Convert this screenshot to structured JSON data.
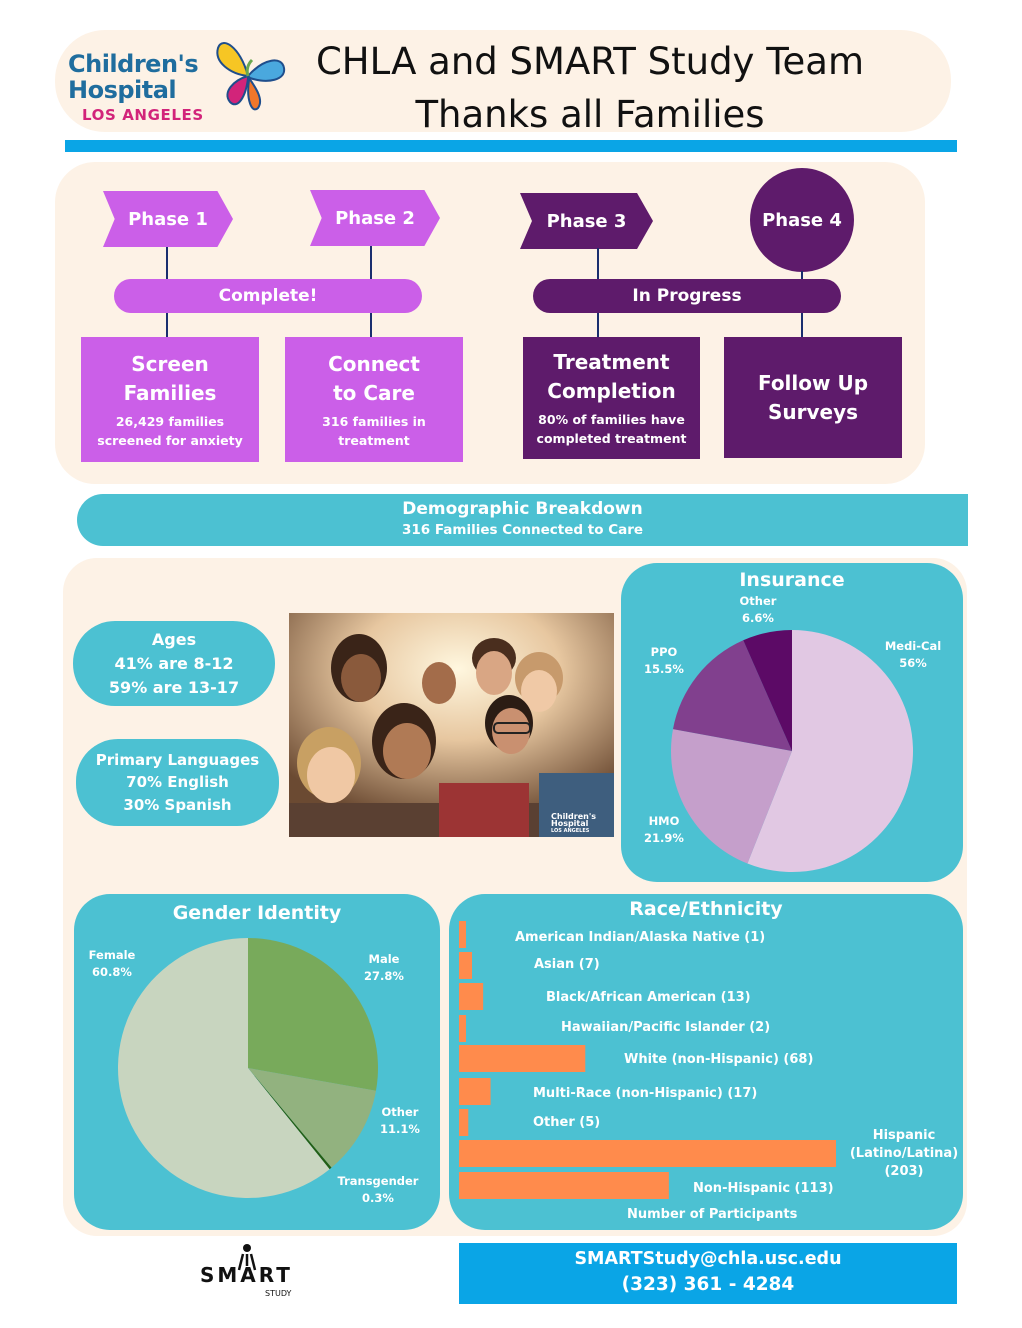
{
  "header": {
    "logo": {
      "line1": "Children's",
      "line2": "Hospital",
      "line3": "LOS ANGELES"
    },
    "title_line1": "CHLA and SMART Study Team",
    "title_line2": "Thanks all Families"
  },
  "phases": {
    "phase1": "Phase 1",
    "phase2": "Phase 2",
    "phase3": "Phase 3",
    "phase4": "Phase 4",
    "complete_label": "Complete!",
    "in_progress_label": "In Progress",
    "boxes": [
      {
        "title_l1": "Screen",
        "title_l2": "Families",
        "sub_l1": "26,429 families",
        "sub_l2": "screened for anxiety"
      },
      {
        "title_l1": "Connect",
        "title_l2": "to Care",
        "sub_l1": "316 families in",
        "sub_l2": "treatment"
      },
      {
        "title_l1": "Treatment",
        "title_l2": "Completion",
        "sub_l1": "80% of families have",
        "sub_l2": "completed treatment"
      },
      {
        "title_l1": "Follow Up",
        "title_l2": "Surveys"
      }
    ]
  },
  "demographics": {
    "title": "Demographic Breakdown",
    "subtitle": "316 Families Connected to Care",
    "ages": {
      "title": "Ages",
      "line1": "41% are 8-12",
      "line2": "59% are 13-17"
    },
    "languages": {
      "title": "Primary Languages",
      "line1": "70% English",
      "line2": "30% Spanish"
    },
    "photo_watermark": {
      "line1": "Children's",
      "line2": "Hospital",
      "line3": "LOS ANGELES"
    }
  },
  "colors": {
    "teal": "#4cc1d2",
    "cream": "#fdf2e6",
    "light_purple": "#cb5fe8",
    "dark_purple": "#5e1b6b",
    "blue": "#0aa5e6",
    "orange": "#ff8b4c"
  },
  "chart_data": [
    {
      "type": "pie",
      "title": "Insurance",
      "slices": [
        {
          "label": "Medi-Cal",
          "value": 56,
          "display": "56%",
          "color": "#e1c8e3"
        },
        {
          "label": "HMO",
          "value": 21.9,
          "display": "21.9%",
          "color": "#c59fcb"
        },
        {
          "label": "PPO",
          "value": 15.5,
          "display": "15.5%",
          "color": "#81408e"
        },
        {
          "label": "Other",
          "value": 6.6,
          "display": "6.6%",
          "color": "#5c0a66"
        }
      ]
    },
    {
      "type": "pie",
      "title": "Gender Identity",
      "slices": [
        {
          "label": "Male",
          "value": 27.8,
          "display": "27.8%",
          "color": "#78aa5b"
        },
        {
          "label": "Other",
          "value": 11.1,
          "display": "11.1%",
          "color": "#92b27f"
        },
        {
          "label": "Transgender",
          "value": 0.3,
          "display": "0.3%",
          "color": "#245e14"
        },
        {
          "label": "Female",
          "value": 60.8,
          "display": "60.8%",
          "color": "#c8d5bf"
        }
      ]
    },
    {
      "type": "bar",
      "title": "Race/Ethnicity",
      "xlabel": "Number of Participants",
      "categories": [
        "American Indian/Alaska Native (1)",
        "Asian (7)",
        "Black/African American (13)",
        "Hawaiian/Pacific Islander (2)",
        "White (non-Hispanic) (68)",
        "Multi-Race (non-Hispanic) (17)",
        "Other (5)",
        "Hispanic (Latino/Latina) (203)",
        "Non-Hispanic (113)"
      ],
      "values": [
        1,
        7,
        13,
        2,
        68,
        17,
        5,
        203,
        113
      ]
    }
  ],
  "footer": {
    "smart_logo": {
      "word": "SMART",
      "sub": "STUDY"
    },
    "email": "SMARTStudy@chla.usc.edu",
    "phone": "(323) 361 - 4284"
  }
}
